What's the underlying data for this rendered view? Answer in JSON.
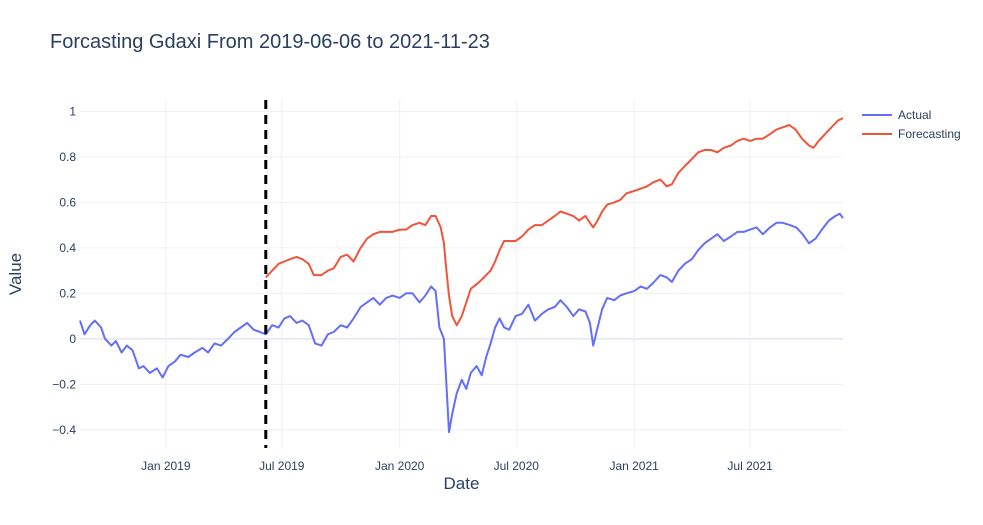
{
  "chart_data": {
    "type": "line",
    "title": "Forcasting Gdaxi From 2019-06-06 to 2021-11-23",
    "xlabel": "Date",
    "ylabel": "Value",
    "x_axis_type": "date",
    "xlim": [
      "2018-08-20",
      "2021-11-23"
    ],
    "ylim": [
      -0.48,
      1.05
    ],
    "x_tick_labels": [
      "Jan 2019",
      "Jul 2019",
      "Jan 2020",
      "Jul 2020",
      "Jan 2021",
      "Jul 2021"
    ],
    "x_tick_dates": [
      "2019-01-01",
      "2019-07-01",
      "2020-01-01",
      "2020-07-01",
      "2021-01-01",
      "2021-07-01"
    ],
    "y_ticks": [
      -0.4,
      -0.2,
      0,
      0.2,
      0.4,
      0.6,
      0.8,
      1
    ],
    "y_tick_labels": [
      "−0.4",
      "−0.2",
      "0",
      "0.2",
      "0.4",
      "0.6",
      "0.8",
      "1"
    ],
    "grid": true,
    "legend_position": "top-right",
    "vertical_marker": {
      "date": "2019-06-06",
      "style": "dashed",
      "color": "#000000"
    },
    "series": [
      {
        "name": "Actual",
        "color": "#636efa",
        "points": [
          [
            "2018-08-20",
            0.08
          ],
          [
            "2018-08-27",
            0.02
          ],
          [
            "2018-09-05",
            0.06
          ],
          [
            "2018-09-12",
            0.08
          ],
          [
            "2018-09-22",
            0.05
          ],
          [
            "2018-09-28",
            0.0
          ],
          [
            "2018-10-08",
            -0.03
          ],
          [
            "2018-10-15",
            -0.01
          ],
          [
            "2018-10-24",
            -0.06
          ],
          [
            "2018-11-01",
            -0.03
          ],
          [
            "2018-11-10",
            -0.05
          ],
          [
            "2018-11-20",
            -0.13
          ],
          [
            "2018-11-27",
            -0.12
          ],
          [
            "2018-12-07",
            -0.15
          ],
          [
            "2018-12-18",
            -0.13
          ],
          [
            "2018-12-27",
            -0.17
          ],
          [
            "2019-01-05",
            -0.12
          ],
          [
            "2019-01-15",
            -0.1
          ],
          [
            "2019-01-24",
            -0.07
          ],
          [
            "2019-02-05",
            -0.08
          ],
          [
            "2019-02-15",
            -0.06
          ],
          [
            "2019-02-27",
            -0.04
          ],
          [
            "2019-03-08",
            -0.06
          ],
          [
            "2019-03-18",
            -0.02
          ],
          [
            "2019-03-28",
            -0.03
          ],
          [
            "2019-04-08",
            0.0
          ],
          [
            "2019-04-18",
            0.03
          ],
          [
            "2019-04-28",
            0.05
          ],
          [
            "2019-05-08",
            0.07
          ],
          [
            "2019-05-18",
            0.04
          ],
          [
            "2019-05-28",
            0.03
          ],
          [
            "2019-06-06",
            0.02
          ],
          [
            "2019-06-16",
            0.06
          ],
          [
            "2019-06-26",
            0.05
          ],
          [
            "2019-07-05",
            0.09
          ],
          [
            "2019-07-14",
            0.1
          ],
          [
            "2019-07-24",
            0.07
          ],
          [
            "2019-08-02",
            0.08
          ],
          [
            "2019-08-12",
            0.06
          ],
          [
            "2019-08-22",
            -0.02
          ],
          [
            "2019-09-01",
            -0.03
          ],
          [
            "2019-09-11",
            0.02
          ],
          [
            "2019-09-20",
            0.03
          ],
          [
            "2019-10-01",
            0.06
          ],
          [
            "2019-10-11",
            0.05
          ],
          [
            "2019-10-21",
            0.09
          ],
          [
            "2019-11-01",
            0.14
          ],
          [
            "2019-11-11",
            0.16
          ],
          [
            "2019-11-21",
            0.18
          ],
          [
            "2019-12-01",
            0.15
          ],
          [
            "2019-12-11",
            0.18
          ],
          [
            "2019-12-21",
            0.19
          ],
          [
            "2020-01-01",
            0.18
          ],
          [
            "2020-01-11",
            0.2
          ],
          [
            "2020-01-21",
            0.2
          ],
          [
            "2020-02-01",
            0.16
          ],
          [
            "2020-02-10",
            0.19
          ],
          [
            "2020-02-19",
            0.23
          ],
          [
            "2020-02-26",
            0.21
          ],
          [
            "2020-03-03",
            0.05
          ],
          [
            "2020-03-10",
            0.0
          ],
          [
            "2020-03-14",
            -0.2
          ],
          [
            "2020-03-18",
            -0.41
          ],
          [
            "2020-03-23",
            -0.33
          ],
          [
            "2020-03-30",
            -0.24
          ],
          [
            "2020-04-07",
            -0.18
          ],
          [
            "2020-04-14",
            -0.22
          ],
          [
            "2020-04-21",
            -0.15
          ],
          [
            "2020-04-30",
            -0.12
          ],
          [
            "2020-05-08",
            -0.16
          ],
          [
            "2020-05-15",
            -0.08
          ],
          [
            "2020-05-22",
            -0.02
          ],
          [
            "2020-05-29",
            0.05
          ],
          [
            "2020-06-05",
            0.09
          ],
          [
            "2020-06-12",
            0.05
          ],
          [
            "2020-06-20",
            0.04
          ],
          [
            "2020-06-30",
            0.1
          ],
          [
            "2020-07-10",
            0.11
          ],
          [
            "2020-07-20",
            0.15
          ],
          [
            "2020-07-30",
            0.08
          ],
          [
            "2020-08-10",
            0.11
          ],
          [
            "2020-08-20",
            0.13
          ],
          [
            "2020-08-30",
            0.14
          ],
          [
            "2020-09-08",
            0.17
          ],
          [
            "2020-09-18",
            0.14
          ],
          [
            "2020-09-28",
            0.1
          ],
          [
            "2020-10-07",
            0.13
          ],
          [
            "2020-10-17",
            0.12
          ],
          [
            "2020-10-24",
            0.07
          ],
          [
            "2020-10-29",
            -0.03
          ],
          [
            "2020-11-05",
            0.05
          ],
          [
            "2020-11-12",
            0.13
          ],
          [
            "2020-11-20",
            0.18
          ],
          [
            "2020-12-01",
            0.17
          ],
          [
            "2020-12-10",
            0.19
          ],
          [
            "2020-12-20",
            0.2
          ],
          [
            "2021-01-01",
            0.21
          ],
          [
            "2021-01-11",
            0.23
          ],
          [
            "2021-01-21",
            0.22
          ],
          [
            "2021-02-01",
            0.25
          ],
          [
            "2021-02-11",
            0.28
          ],
          [
            "2021-02-21",
            0.27
          ],
          [
            "2021-03-01",
            0.25
          ],
          [
            "2021-03-11",
            0.3
          ],
          [
            "2021-03-21",
            0.33
          ],
          [
            "2021-04-01",
            0.35
          ],
          [
            "2021-04-11",
            0.39
          ],
          [
            "2021-04-21",
            0.42
          ],
          [
            "2021-05-01",
            0.44
          ],
          [
            "2021-05-11",
            0.46
          ],
          [
            "2021-05-21",
            0.43
          ],
          [
            "2021-06-01",
            0.45
          ],
          [
            "2021-06-11",
            0.47
          ],
          [
            "2021-06-21",
            0.47
          ],
          [
            "2021-07-01",
            0.48
          ],
          [
            "2021-07-11",
            0.49
          ],
          [
            "2021-07-21",
            0.46
          ],
          [
            "2021-08-01",
            0.49
          ],
          [
            "2021-08-11",
            0.51
          ],
          [
            "2021-08-21",
            0.51
          ],
          [
            "2021-09-01",
            0.5
          ],
          [
            "2021-09-11",
            0.49
          ],
          [
            "2021-09-21",
            0.46
          ],
          [
            "2021-10-01",
            0.42
          ],
          [
            "2021-10-11",
            0.44
          ],
          [
            "2021-10-21",
            0.48
          ],
          [
            "2021-11-01",
            0.52
          ],
          [
            "2021-11-11",
            0.54
          ],
          [
            "2021-11-18",
            0.55
          ],
          [
            "2021-11-23",
            0.53
          ]
        ]
      },
      {
        "name": "Forecasting",
        "color": "#ef553b",
        "points": [
          [
            "2019-06-06",
            0.27
          ],
          [
            "2019-06-16",
            0.3
          ],
          [
            "2019-06-26",
            0.33
          ],
          [
            "2019-07-05",
            0.34
          ],
          [
            "2019-07-14",
            0.35
          ],
          [
            "2019-07-24",
            0.36
          ],
          [
            "2019-08-02",
            0.35
          ],
          [
            "2019-08-12",
            0.33
          ],
          [
            "2019-08-20",
            0.28
          ],
          [
            "2019-09-01",
            0.28
          ],
          [
            "2019-09-11",
            0.3
          ],
          [
            "2019-09-20",
            0.31
          ],
          [
            "2019-10-01",
            0.36
          ],
          [
            "2019-10-11",
            0.37
          ],
          [
            "2019-10-21",
            0.34
          ],
          [
            "2019-11-01",
            0.4
          ],
          [
            "2019-11-11",
            0.44
          ],
          [
            "2019-11-21",
            0.46
          ],
          [
            "2019-12-01",
            0.47
          ],
          [
            "2019-12-11",
            0.47
          ],
          [
            "2019-12-21",
            0.47
          ],
          [
            "2020-01-01",
            0.48
          ],
          [
            "2020-01-11",
            0.48
          ],
          [
            "2020-01-21",
            0.5
          ],
          [
            "2020-02-01",
            0.51
          ],
          [
            "2020-02-10",
            0.5
          ],
          [
            "2020-02-19",
            0.54
          ],
          [
            "2020-02-26",
            0.54
          ],
          [
            "2020-03-05",
            0.49
          ],
          [
            "2020-03-10",
            0.42
          ],
          [
            "2020-03-14",
            0.3
          ],
          [
            "2020-03-18",
            0.19
          ],
          [
            "2020-03-23",
            0.1
          ],
          [
            "2020-03-30",
            0.06
          ],
          [
            "2020-04-07",
            0.1
          ],
          [
            "2020-04-14",
            0.16
          ],
          [
            "2020-04-21",
            0.22
          ],
          [
            "2020-04-30",
            0.24
          ],
          [
            "2020-05-08",
            0.26
          ],
          [
            "2020-05-15",
            0.28
          ],
          [
            "2020-05-22",
            0.3
          ],
          [
            "2020-05-29",
            0.34
          ],
          [
            "2020-06-05",
            0.39
          ],
          [
            "2020-06-12",
            0.43
          ],
          [
            "2020-06-20",
            0.43
          ],
          [
            "2020-06-30",
            0.43
          ],
          [
            "2020-07-10",
            0.45
          ],
          [
            "2020-07-20",
            0.48
          ],
          [
            "2020-07-30",
            0.5
          ],
          [
            "2020-08-10",
            0.5
          ],
          [
            "2020-08-20",
            0.52
          ],
          [
            "2020-08-30",
            0.54
          ],
          [
            "2020-09-08",
            0.56
          ],
          [
            "2020-09-18",
            0.55
          ],
          [
            "2020-09-28",
            0.54
          ],
          [
            "2020-10-07",
            0.52
          ],
          [
            "2020-10-17",
            0.54
          ],
          [
            "2020-10-24",
            0.51
          ],
          [
            "2020-10-29",
            0.49
          ],
          [
            "2020-11-05",
            0.52
          ],
          [
            "2020-11-12",
            0.56
          ],
          [
            "2020-11-20",
            0.59
          ],
          [
            "2020-12-01",
            0.6
          ],
          [
            "2020-12-10",
            0.61
          ],
          [
            "2020-12-20",
            0.64
          ],
          [
            "2021-01-01",
            0.65
          ],
          [
            "2021-01-11",
            0.66
          ],
          [
            "2021-01-21",
            0.67
          ],
          [
            "2021-02-01",
            0.69
          ],
          [
            "2021-02-11",
            0.7
          ],
          [
            "2021-02-21",
            0.67
          ],
          [
            "2021-03-01",
            0.68
          ],
          [
            "2021-03-11",
            0.73
          ],
          [
            "2021-03-21",
            0.76
          ],
          [
            "2021-04-01",
            0.79
          ],
          [
            "2021-04-11",
            0.82
          ],
          [
            "2021-04-21",
            0.83
          ],
          [
            "2021-05-01",
            0.83
          ],
          [
            "2021-05-11",
            0.82
          ],
          [
            "2021-05-21",
            0.84
          ],
          [
            "2021-06-01",
            0.85
          ],
          [
            "2021-06-11",
            0.87
          ],
          [
            "2021-06-21",
            0.88
          ],
          [
            "2021-07-01",
            0.87
          ],
          [
            "2021-07-11",
            0.88
          ],
          [
            "2021-07-21",
            0.88
          ],
          [
            "2021-08-01",
            0.9
          ],
          [
            "2021-08-11",
            0.92
          ],
          [
            "2021-08-21",
            0.93
          ],
          [
            "2021-08-31",
            0.94
          ],
          [
            "2021-09-10",
            0.92
          ],
          [
            "2021-09-20",
            0.88
          ],
          [
            "2021-10-01",
            0.85
          ],
          [
            "2021-10-08",
            0.84
          ],
          [
            "2021-10-16",
            0.87
          ],
          [
            "2021-10-26",
            0.9
          ],
          [
            "2021-11-05",
            0.93
          ],
          [
            "2021-11-15",
            0.96
          ],
          [
            "2021-11-23",
            0.97
          ]
        ]
      }
    ]
  }
}
